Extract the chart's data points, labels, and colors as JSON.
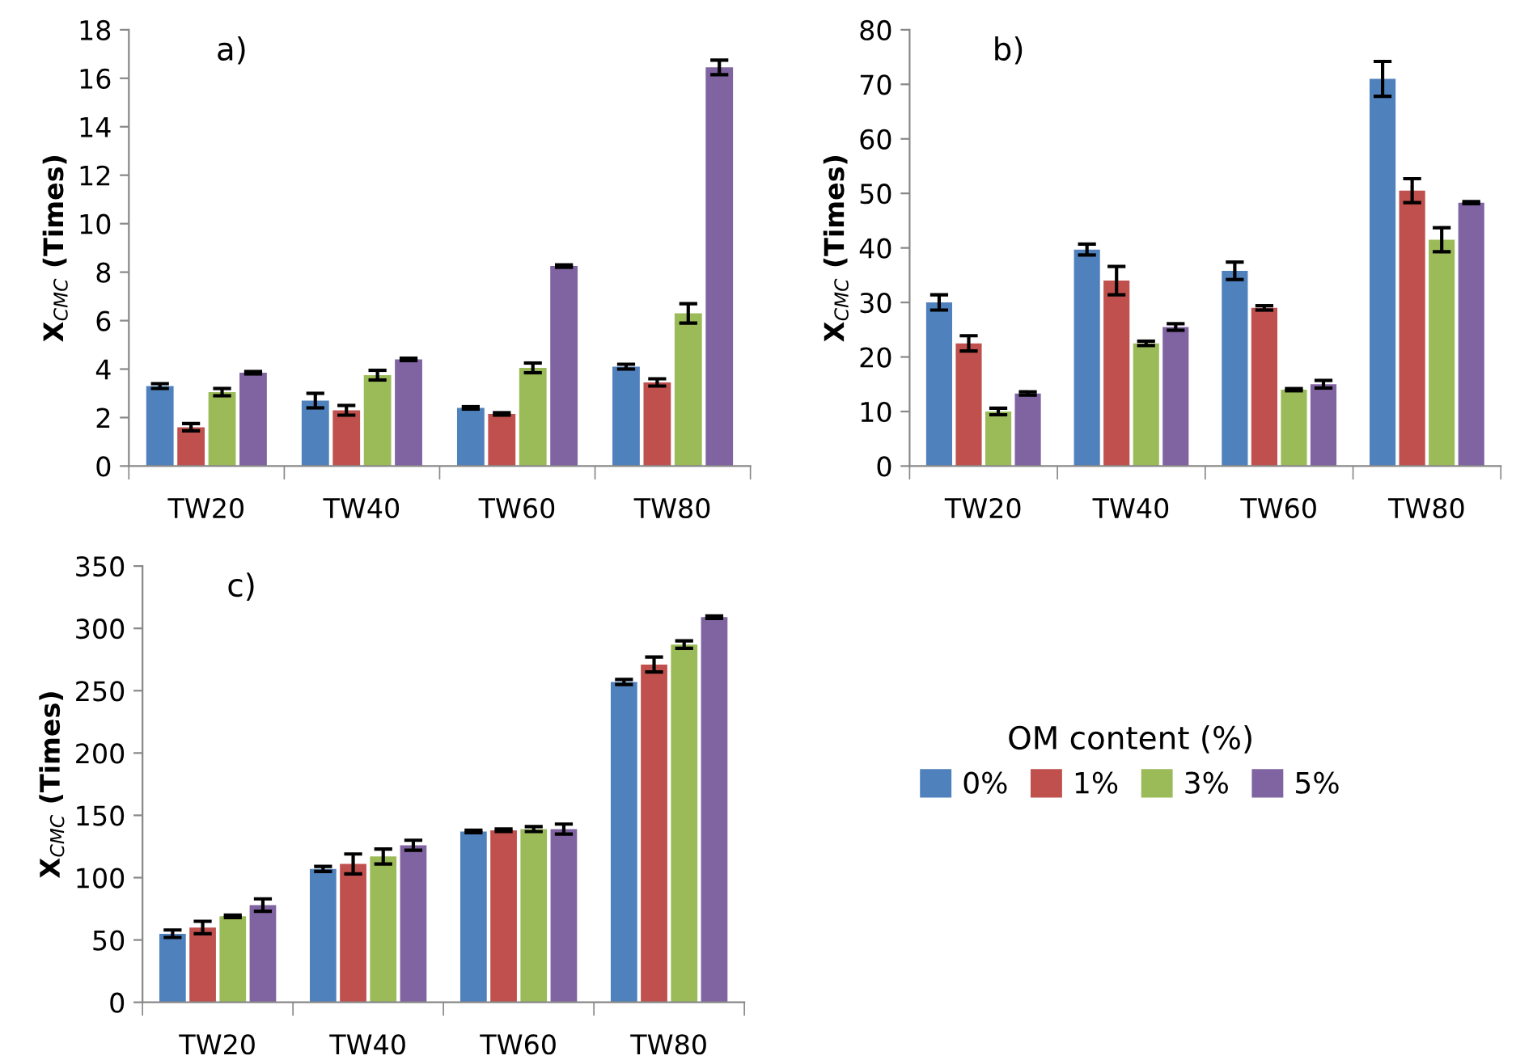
{
  "chart_data": [
    {
      "type": "bar",
      "categories": [
        "TW20",
        "TW40",
        "TW60",
        "TW80"
      ],
      "ylabel": "X$_{CMC}$ (Times)",
      "annotations": [
        "a)"
      ],
      "ylim": [
        0,
        18
      ],
      "yticks": [
        0,
        2,
        4,
        6,
        8,
        10,
        12,
        14,
        16,
        18
      ],
      "grid": false,
      "legend": false,
      "series": [
        {
          "color": "#4f81bd",
          "values": [
            3.3,
            2.7,
            2.4,
            4.1
          ],
          "errors": [
            0.1,
            0.3,
            0.05,
            0.1
          ]
        },
        {
          "color": "#c0504d",
          "values": [
            1.6,
            2.3,
            2.15,
            3.45
          ],
          "errors": [
            0.15,
            0.2,
            0.05,
            0.15
          ]
        },
        {
          "color": "#9bbb59",
          "values": [
            3.05,
            3.75,
            4.05,
            6.3
          ],
          "errors": [
            0.15,
            0.2,
            0.2,
            0.4
          ]
        },
        {
          "color": "#8064a2",
          "values": [
            3.85,
            4.4,
            8.25,
            16.45
          ],
          "errors": [
            0.05,
            0.05,
            0.05,
            0.3
          ]
        }
      ]
    },
    {
      "type": "bar",
      "categories": [
        "TW20",
        "TW40",
        "TW60",
        "TW80"
      ],
      "ylabel": "X$_{CMC}$ (Times)",
      "annotations": [
        "b)"
      ],
      "ylim": [
        0,
        80
      ],
      "yticks": [
        0,
        10,
        20,
        30,
        40,
        50,
        60,
        70,
        80
      ],
      "grid": false,
      "legend": false,
      "series": [
        {
          "color": "#4f81bd",
          "values": [
            30,
            39.7,
            35.8,
            71
          ],
          "errors": [
            1.4,
            1,
            1.6,
            3.2
          ]
        },
        {
          "color": "#c0504d",
          "values": [
            22.5,
            34,
            29,
            50.5
          ],
          "errors": [
            1.4,
            2.6,
            0.4,
            2.2
          ]
        },
        {
          "color": "#9bbb59",
          "values": [
            10,
            22.5,
            14,
            41.5
          ],
          "errors": [
            0.6,
            0.4,
            0.2,
            2.2
          ]
        },
        {
          "color": "#8064a2",
          "values": [
            13.3,
            25.5,
            15,
            48.3
          ],
          "errors": [
            0.3,
            0.6,
            0.7,
            0.2
          ]
        }
      ]
    },
    {
      "type": "bar",
      "categories": [
        "TW20",
        "TW40",
        "TW60",
        "TW80"
      ],
      "ylabel": "X$_{CMC}$ (Times)",
      "annotations": [
        "c)"
      ],
      "ylim": [
        0,
        350
      ],
      "yticks": [
        0,
        50,
        100,
        150,
        200,
        250,
        300,
        350
      ],
      "grid": false,
      "legend": "right",
      "legend_title": "OM content (%)",
      "series": [
        {
          "name": "0%",
          "color": "#4f81bd",
          "values": [
            55,
            107,
            137,
            257
          ],
          "errors": [
            3,
            2,
            1,
            2
          ]
        },
        {
          "name": "1%",
          "color": "#c0504d",
          "values": [
            60,
            111,
            138,
            271
          ],
          "errors": [
            5,
            8,
            1,
            6
          ]
        },
        {
          "name": "3%",
          "color": "#9bbb59",
          "values": [
            69,
            117,
            139,
            287
          ],
          "errors": [
            1,
            6,
            2,
            3
          ]
        },
        {
          "name": "5%",
          "color": "#8064a2",
          "values": [
            78,
            126,
            139,
            309
          ],
          "errors": [
            5,
            4,
            4,
            1
          ]
        }
      ]
    }
  ]
}
